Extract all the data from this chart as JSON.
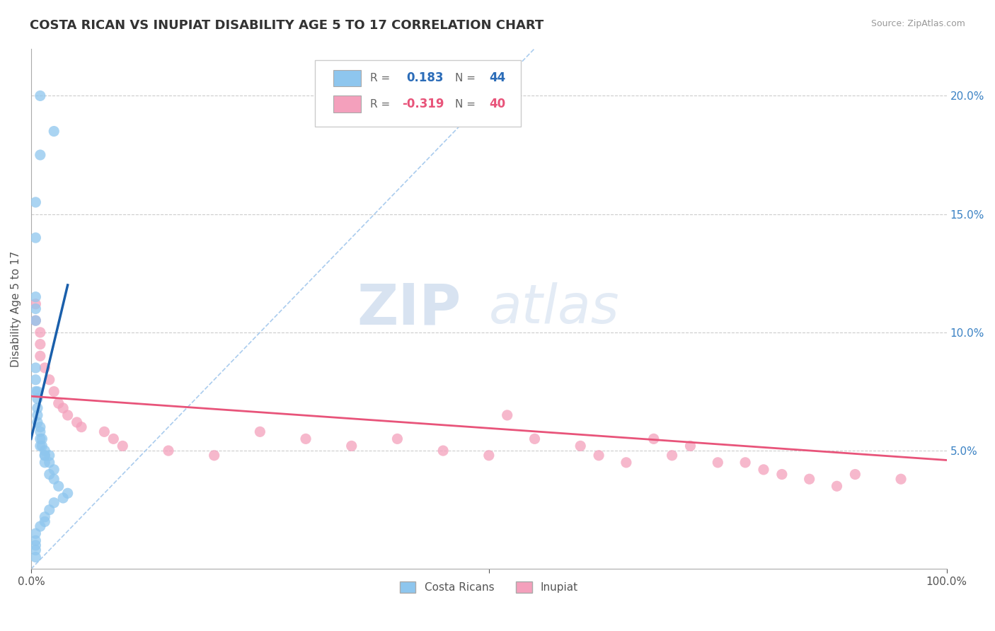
{
  "title": "COSTA RICAN VS INUPIAT DISABILITY AGE 5 TO 17 CORRELATION CHART",
  "source": "Source: ZipAtlas.com",
  "ylabel": "Disability Age 5 to 17",
  "xlim": [
    0,
    1.0
  ],
  "ylim": [
    0,
    0.22
  ],
  "scatter_color1": "#8EC6EE",
  "scatter_color2": "#F4A0BC",
  "line_color1": "#1A5FAB",
  "line_color2": "#E8547A",
  "diag_color": "#AACCEE",
  "watermark_zip": "ZIP",
  "watermark_atlas": "atlas",
  "background_color": "#FFFFFF",
  "costa_rican_x": [
    0.01,
    0.025,
    0.01,
    0.005,
    0.005,
    0.005,
    0.005,
    0.005,
    0.005,
    0.005,
    0.005,
    0.007,
    0.007,
    0.007,
    0.007,
    0.007,
    0.01,
    0.01,
    0.01,
    0.01,
    0.012,
    0.012,
    0.015,
    0.015,
    0.015,
    0.015,
    0.02,
    0.02,
    0.02,
    0.025,
    0.025,
    0.03,
    0.04,
    0.035,
    0.025,
    0.02,
    0.015,
    0.015,
    0.01,
    0.005,
    0.005,
    0.005,
    0.005,
    0.005
  ],
  "costa_rican_y": [
    0.2,
    0.185,
    0.175,
    0.155,
    0.14,
    0.115,
    0.11,
    0.105,
    0.085,
    0.08,
    0.075,
    0.075,
    0.072,
    0.068,
    0.065,
    0.062,
    0.06,
    0.058,
    0.055,
    0.052,
    0.055,
    0.052,
    0.05,
    0.048,
    0.048,
    0.045,
    0.048,
    0.045,
    0.04,
    0.042,
    0.038,
    0.035,
    0.032,
    0.03,
    0.028,
    0.025,
    0.022,
    0.02,
    0.018,
    0.015,
    0.012,
    0.01,
    0.008,
    0.005
  ],
  "inupiat_x": [
    0.005,
    0.005,
    0.01,
    0.01,
    0.01,
    0.015,
    0.02,
    0.025,
    0.03,
    0.035,
    0.04,
    0.05,
    0.055,
    0.08,
    0.09,
    0.1,
    0.15,
    0.2,
    0.25,
    0.3,
    0.35,
    0.4,
    0.45,
    0.5,
    0.52,
    0.55,
    0.6,
    0.62,
    0.65,
    0.68,
    0.7,
    0.72,
    0.75,
    0.78,
    0.8,
    0.82,
    0.85,
    0.88,
    0.9,
    0.95
  ],
  "inupiat_y": [
    0.112,
    0.105,
    0.1,
    0.095,
    0.09,
    0.085,
    0.08,
    0.075,
    0.07,
    0.068,
    0.065,
    0.062,
    0.06,
    0.058,
    0.055,
    0.052,
    0.05,
    0.048,
    0.058,
    0.055,
    0.052,
    0.055,
    0.05,
    0.048,
    0.065,
    0.055,
    0.052,
    0.048,
    0.045,
    0.055,
    0.048,
    0.052,
    0.045,
    0.045,
    0.042,
    0.04,
    0.038,
    0.035,
    0.04,
    0.038
  ],
  "cr_trend_x0": 0.0,
  "cr_trend_y0": 0.055,
  "cr_trend_x1": 0.04,
  "cr_trend_y1": 0.12,
  "inp_trend_x0": 0.0,
  "inp_trend_y0": 0.073,
  "inp_trend_x1": 1.0,
  "inp_trend_y1": 0.046
}
